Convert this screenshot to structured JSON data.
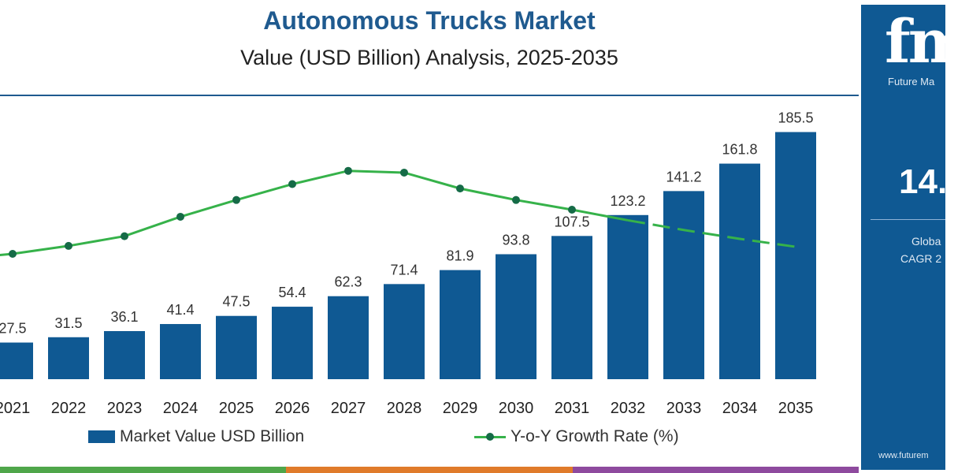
{
  "header": {
    "title": "Autonomous Trucks Market",
    "subtitle": "Value (USD Billion) Analysis, 2025-2035"
  },
  "side_panel": {
    "logo_text": "fm",
    "brand_text": "Future Ma",
    "cagr_value": "14.",
    "label_line1": "Globa",
    "label_line2": "CAGR 2",
    "website": "www.futurem"
  },
  "colors": {
    "bar": "#0f5993",
    "line": "#36b24a",
    "marker": "#156b47",
    "title": "#1f5a8f",
    "panel": "#0f5993",
    "strip": [
      "#4fa64a",
      "#e07b2a",
      "#8e4a9e"
    ]
  },
  "chart_data": {
    "type": "bar",
    "categories": [
      "2021",
      "2022",
      "2023",
      "2024",
      "2025",
      "2026",
      "2027",
      "2028",
      "2029",
      "2030",
      "2031",
      "2032",
      "2033",
      "2034",
      "2035"
    ],
    "series": [
      {
        "name": "Market Value USD Billion",
        "type": "bar",
        "values": [
          27.5,
          31.5,
          36.1,
          41.4,
          47.5,
          54.4,
          62.3,
          71.4,
          81.9,
          93.8,
          107.5,
          123.2,
          141.2,
          161.8,
          185.5
        ],
        "labels": [
          "27.5",
          "31.5",
          "36.1",
          "41.4",
          "47.5",
          "54.4",
          "62.3",
          "71.4",
          "81.9",
          "93.8",
          "107.5",
          "123.2",
          "141.2",
          "161.8",
          "185.5"
        ]
      },
      {
        "name": "Y-o-Y Growth Rate (%)",
        "type": "line",
        "values": [
          12.6,
          13.5,
          14.6,
          16.8,
          18.7,
          20.5,
          22.0,
          21.8,
          20.0,
          18.7,
          17.6,
          16.4,
          15.3,
          14.3,
          13.4
        ],
        "markers_until": "2031",
        "dashed_from": "2032"
      }
    ],
    "ylim": [
      0,
      200
    ],
    "legend_position": "bottom",
    "grid": false
  }
}
